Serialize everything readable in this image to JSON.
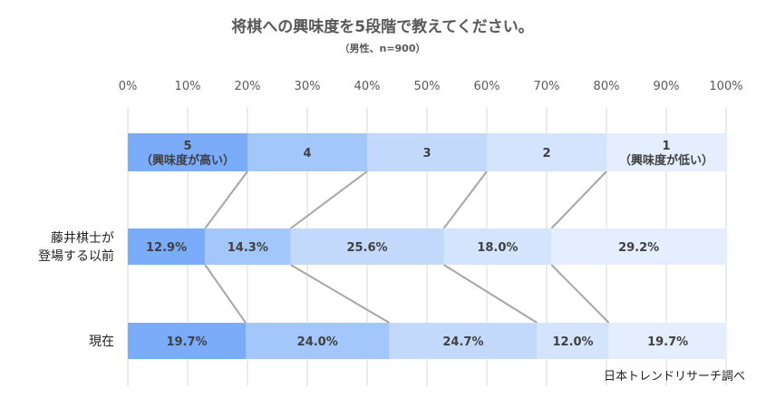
{
  "chart_data": {
    "type": "bar",
    "stacked": true,
    "orientation": "horizontal",
    "title": "将棋への興味度を5段階で教えてください。",
    "subtitle": "（男性、n=900）",
    "x_ticks": [
      "0%",
      "10%",
      "20%",
      "30%",
      "40%",
      "50%",
      "60%",
      "70%",
      "80%",
      "90%",
      "100%"
    ],
    "xlim": [
      0,
      100
    ],
    "grid": true,
    "scale_legend": [
      {
        "lines": [
          "5",
          "（興味度が高い）"
        ],
        "value": 20
      },
      {
        "lines": [
          "4"
        ],
        "value": 20
      },
      {
        "lines": [
          "3"
        ],
        "value": 20
      },
      {
        "lines": [
          "2"
        ],
        "value": 20
      },
      {
        "lines": [
          "1",
          "（興味度が低い）"
        ],
        "value": 20
      }
    ],
    "categories": [
      [
        "藤井棋士が",
        "登場する以前"
      ],
      [
        "現在"
      ]
    ],
    "series": [
      {
        "name": "5",
        "color": "#7aacf9",
        "values": [
          12.9,
          19.7
        ],
        "labels": [
          "12.9%",
          "19.7%"
        ]
      },
      {
        "name": "4",
        "color": "#a3c6fb",
        "values": [
          14.3,
          24.0
        ],
        "labels": [
          "14.3%",
          "24.0%"
        ]
      },
      {
        "name": "3",
        "color": "#c3d9fc",
        "values": [
          25.6,
          24.7
        ],
        "labels": [
          "25.6%",
          "24.7%"
        ]
      },
      {
        "name": "2",
        "color": "#d5e4fd",
        "values": [
          18.0,
          12.0
        ],
        "labels": [
          "18.0%",
          "12.0%"
        ]
      },
      {
        "name": "1",
        "color": "#e4eefe",
        "values": [
          29.2,
          19.7
        ],
        "labels": [
          "29.2%",
          "19.7%"
        ]
      }
    ],
    "source": "日本トレンドリサーチ調べ"
  }
}
